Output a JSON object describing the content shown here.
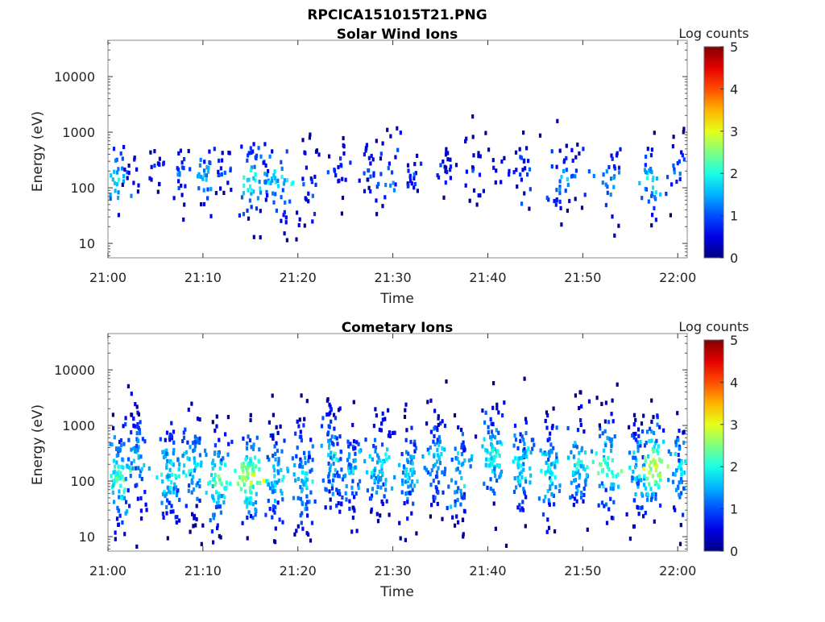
{
  "figure": {
    "title": "RPCICA151015T21.PNG"
  },
  "chart_data": [
    {
      "type": "heatmap",
      "title": "Solar Wind Ions",
      "xlabel": "Time",
      "ylabel": "Energy (eV)",
      "x_ticks": [
        "21:00",
        "21:10",
        "21:20",
        "21:30",
        "21:40",
        "21:50",
        "22:00"
      ],
      "xlim_minutes": [
        0,
        61
      ],
      "y_scale": "log",
      "y_ticks": [
        {
          "value": 10,
          "label": "10"
        },
        {
          "value": 100,
          "label": "100"
        },
        {
          "value": 1000,
          "label": "1000"
        },
        {
          "value": 10000,
          "label": "10000"
        }
      ],
      "ylim": [
        5.5,
        45000
      ],
      "colorbar": {
        "label": "Log counts",
        "range": [
          0,
          5
        ],
        "ticks": [
          "0",
          "1",
          "2",
          "3",
          "4",
          "5"
        ],
        "colormap": "jet"
      },
      "clusters": [
        {
          "t": 0.8,
          "e": 150,
          "spread": 0.3,
          "lvl": 1.8,
          "n": 28
        },
        {
          "t": 2.3,
          "e": 220,
          "spread": 0.15,
          "lvl": 0.7,
          "n": 12
        },
        {
          "t": 5.0,
          "e": 230,
          "spread": 0.18,
          "lvl": 0.7,
          "n": 14
        },
        {
          "t": 7.5,
          "e": 200,
          "spread": 0.25,
          "lvl": 1.0,
          "n": 22
        },
        {
          "t": 10.3,
          "e": 160,
          "spread": 0.3,
          "lvl": 1.5,
          "n": 28
        },
        {
          "t": 12.0,
          "e": 200,
          "spread": 0.2,
          "lvl": 0.9,
          "n": 16
        },
        {
          "t": 15.0,
          "e": 130,
          "spread": 0.3,
          "lvl": 2.0,
          "n": 42
        },
        {
          "t": 16.5,
          "e": 180,
          "spread": 0.28,
          "lvl": 1.3,
          "n": 24
        },
        {
          "t": 18.2,
          "e": 130,
          "spread": 0.38,
          "lvl": 1.7,
          "n": 30
        },
        {
          "t": 20.8,
          "e": 160,
          "spread": 0.4,
          "lvl": 0.9,
          "n": 28
        },
        {
          "t": 24.0,
          "e": 250,
          "spread": 0.22,
          "lvl": 0.8,
          "n": 20
        },
        {
          "t": 27.5,
          "e": 200,
          "spread": 0.25,
          "lvl": 0.9,
          "n": 24
        },
        {
          "t": 29.5,
          "e": 180,
          "spread": 0.3,
          "lvl": 1.2,
          "n": 22
        },
        {
          "t": 32.0,
          "e": 200,
          "spread": 0.22,
          "lvl": 0.7,
          "n": 18
        },
        {
          "t": 35.5,
          "e": 250,
          "spread": 0.2,
          "lvl": 0.7,
          "n": 20
        },
        {
          "t": 38.5,
          "e": 220,
          "spread": 0.25,
          "lvl": 0.8,
          "n": 22
        },
        {
          "t": 41.0,
          "e": 250,
          "spread": 0.15,
          "lvl": 0.7,
          "n": 10
        },
        {
          "t": 43.5,
          "e": 200,
          "spread": 0.28,
          "lvl": 0.9,
          "n": 22
        },
        {
          "t": 47.5,
          "e": 150,
          "spread": 0.28,
          "lvl": 1.4,
          "n": 28
        },
        {
          "t": 49.2,
          "e": 200,
          "spread": 0.25,
          "lvl": 1.0,
          "n": 18
        },
        {
          "t": 52.7,
          "e": 130,
          "spread": 0.3,
          "lvl": 1.3,
          "n": 26
        },
        {
          "t": 57.0,
          "e": 150,
          "spread": 0.3,
          "lvl": 1.7,
          "n": 34
        },
        {
          "t": 60.0,
          "e": 200,
          "spread": 0.25,
          "lvl": 1.2,
          "n": 24
        }
      ]
    },
    {
      "type": "heatmap",
      "title": "Cometary Ions",
      "xlabel": "Time",
      "ylabel": "Energy (eV)",
      "x_ticks": [
        "21:00",
        "21:10",
        "21:20",
        "21:30",
        "21:40",
        "21:50",
        "22:00"
      ],
      "xlim_minutes": [
        0,
        61
      ],
      "y_scale": "log",
      "y_ticks": [
        {
          "value": 10,
          "label": "10"
        },
        {
          "value": 100,
          "label": "100"
        },
        {
          "value": 1000,
          "label": "1000"
        },
        {
          "value": 10000,
          "label": "10000"
        }
      ],
      "ylim": [
        5.5,
        45000
      ],
      "colorbar": {
        "label": "Log counts",
        "range": [
          0,
          5
        ],
        "ticks": [
          "0",
          "1",
          "2",
          "3",
          "4",
          "5"
        ],
        "colormap": "jet"
      },
      "clusters": [
        {
          "t": 1.0,
          "e": 120,
          "spread": 0.4,
          "lvl": 2.2,
          "n": 80
        },
        {
          "t": 3.0,
          "e": 250,
          "spread": 0.45,
          "lvl": 1.5,
          "n": 70
        },
        {
          "t": 6.5,
          "e": 150,
          "spread": 0.42,
          "lvl": 1.8,
          "n": 80
        },
        {
          "t": 9.0,
          "e": 200,
          "spread": 0.4,
          "lvl": 1.8,
          "n": 70
        },
        {
          "t": 11.5,
          "e": 100,
          "spread": 0.4,
          "lvl": 2.2,
          "n": 80
        },
        {
          "t": 14.8,
          "e": 120,
          "spread": 0.35,
          "lvl": 2.8,
          "n": 90
        },
        {
          "t": 17.5,
          "e": 120,
          "spread": 0.4,
          "lvl": 1.8,
          "n": 70
        },
        {
          "t": 20.5,
          "e": 120,
          "spread": 0.45,
          "lvl": 1.6,
          "n": 80
        },
        {
          "t": 23.5,
          "e": 300,
          "spread": 0.45,
          "lvl": 1.6,
          "n": 80
        },
        {
          "t": 25.5,
          "e": 150,
          "spread": 0.4,
          "lvl": 1.6,
          "n": 60
        },
        {
          "t": 28.5,
          "e": 200,
          "spread": 0.4,
          "lvl": 1.8,
          "n": 80
        },
        {
          "t": 31.5,
          "e": 150,
          "spread": 0.4,
          "lvl": 1.6,
          "n": 70
        },
        {
          "t": 34.5,
          "e": 300,
          "spread": 0.4,
          "lvl": 1.6,
          "n": 70
        },
        {
          "t": 37.0,
          "e": 150,
          "spread": 0.4,
          "lvl": 1.6,
          "n": 60
        },
        {
          "t": 40.5,
          "e": 300,
          "spread": 0.4,
          "lvl": 1.9,
          "n": 80
        },
        {
          "t": 43.5,
          "e": 200,
          "spread": 0.4,
          "lvl": 1.8,
          "n": 70
        },
        {
          "t": 46.5,
          "e": 150,
          "spread": 0.4,
          "lvl": 1.9,
          "n": 70
        },
        {
          "t": 49.5,
          "e": 200,
          "spread": 0.4,
          "lvl": 1.8,
          "n": 70
        },
        {
          "t": 52.5,
          "e": 200,
          "spread": 0.4,
          "lvl": 2.2,
          "n": 70
        },
        {
          "t": 55.5,
          "e": 150,
          "spread": 0.4,
          "lvl": 1.6,
          "n": 60
        },
        {
          "t": 57.2,
          "e": 200,
          "spread": 0.38,
          "lvl": 2.8,
          "n": 80
        },
        {
          "t": 60.0,
          "e": 200,
          "spread": 0.4,
          "lvl": 1.8,
          "n": 60
        }
      ]
    }
  ]
}
